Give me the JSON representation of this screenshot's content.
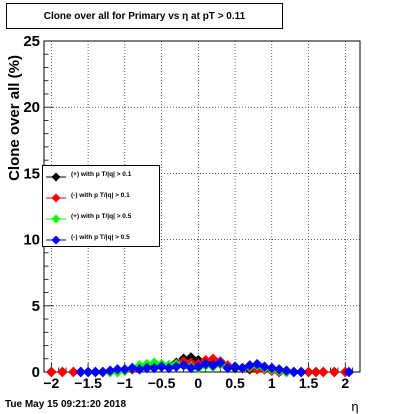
{
  "title": "Clone  over all for Primary vs   η at pT > 0.11",
  "footer": {
    "date": "Tue May 15 09:21:20 2018"
  },
  "chart_data": {
    "type": "scatter",
    "title": "Clone  over all for Primary vs   η at pT > 0.11",
    "xlabel": "η",
    "ylabel": "Clone  over all (%)",
    "xlim": [
      -2.1,
      2.2
    ],
    "ylim": [
      0,
      25
    ],
    "xticks": [
      -2,
      -1.5,
      -1,
      -0.5,
      0,
      0.5,
      1,
      1.5,
      2
    ],
    "xtick_labels": [
      "−2",
      "−1.5",
      "−1",
      "−0.5",
      "0",
      "0.5",
      "1",
      "1.5",
      "2"
    ],
    "yticks": [
      0,
      5,
      10,
      15,
      20,
      25
    ],
    "ytick_labels": [
      "0",
      "5",
      "10",
      "15",
      "20",
      "25"
    ],
    "grid": true,
    "legend_position": "middle-left",
    "series": [
      {
        "name": "(+) with p T/|q| > 0.1",
        "color": "#000000",
        "x": [
          -2.0,
          -1.85,
          -1.7,
          -1.6,
          -1.5,
          -1.4,
          -1.3,
          -1.2,
          -1.1,
          -1.0,
          -0.9,
          -0.8,
          -0.7,
          -0.6,
          -0.5,
          -0.4,
          -0.3,
          -0.2,
          -0.1,
          0.0,
          0.1,
          0.2,
          0.3,
          0.4,
          0.5,
          0.6,
          0.7,
          0.8,
          0.9,
          1.0,
          1.1,
          1.2,
          1.3,
          1.4,
          1.5,
          1.6,
          1.7,
          1.85,
          2.0
        ],
        "y": [
          0,
          0,
          0,
          0,
          0,
          0,
          0,
          0,
          0,
          0.1,
          0.2,
          0.3,
          0.4,
          0.5,
          0.4,
          0.5,
          0.7,
          1.0,
          1.1,
          0.9,
          0.7,
          0.8,
          0.6,
          0.4,
          0.3,
          0.3,
          0.2,
          0.3,
          0.2,
          0.1,
          0,
          0,
          0,
          0,
          0,
          0,
          0,
          0,
          0
        ]
      },
      {
        "name": "(-) with p T/|q| > 0.1",
        "color": "#ff0000",
        "x": [
          -2.0,
          -1.85,
          -1.7,
          -1.6,
          -1.5,
          -1.4,
          -1.3,
          -1.2,
          -1.1,
          -1.0,
          -0.9,
          -0.8,
          -0.7,
          -0.6,
          -0.5,
          -0.4,
          -0.3,
          -0.2,
          -0.1,
          0.0,
          0.1,
          0.2,
          0.3,
          0.4,
          0.5,
          0.6,
          0.7,
          0.8,
          0.9,
          1.0,
          1.1,
          1.2,
          1.3,
          1.4,
          1.5,
          1.6,
          1.7,
          1.85,
          2.0
        ],
        "y": [
          0,
          0,
          0,
          0,
          0,
          0,
          0,
          0,
          0,
          0.1,
          0.2,
          0.3,
          0.3,
          0.4,
          0.5,
          0.4,
          0.6,
          0.8,
          0.7,
          0.6,
          0.9,
          1.0,
          0.8,
          0.5,
          0.4,
          0.3,
          0.3,
          0.2,
          0.2,
          0.1,
          0,
          0,
          0,
          0,
          0,
          0,
          0,
          0,
          0
        ]
      },
      {
        "name": "(+) with p T/|q| > 0.5",
        "color": "#00ff00",
        "x": [
          -1.5,
          -1.4,
          -1.3,
          -1.2,
          -1.1,
          -1.0,
          -0.9,
          -0.8,
          -0.7,
          -0.6,
          -0.5,
          -0.4,
          -0.3,
          -0.2,
          -0.1,
          0.0,
          0.1,
          0.2,
          0.3,
          0.4,
          0.5,
          0.6,
          0.7,
          0.8,
          0.9,
          1.0,
          1.1,
          1.2,
          1.3
        ],
        "y": [
          0,
          0,
          0,
          0,
          0,
          0.1,
          0.3,
          0.5,
          0.6,
          0.7,
          0.6,
          0.5,
          0.6,
          0.5,
          0.4,
          0.3,
          0.5,
          0.4,
          0.6,
          0.3,
          0.4,
          0.3,
          0.4,
          0.5,
          0.3,
          0.2,
          0.1,
          0,
          0
        ]
      },
      {
        "name": "(-) with p T/|q| > 0.5",
        "color": "#0000ff",
        "x": [
          -1.6,
          -1.5,
          -1.4,
          -1.3,
          -1.2,
          -1.1,
          -1.0,
          -0.9,
          -0.8,
          -0.7,
          -0.6,
          -0.5,
          -0.4,
          -0.3,
          -0.2,
          -0.1,
          0.0,
          0.1,
          0.2,
          0.3,
          0.4,
          0.5,
          0.6,
          0.7,
          0.8,
          0.9,
          1.0,
          1.1,
          1.2,
          1.3,
          1.4,
          2.05
        ],
        "y": [
          0,
          0,
          0,
          0,
          0.1,
          0.2,
          0.2,
          0.3,
          0.2,
          0.3,
          0.3,
          0.4,
          0.3,
          0.4,
          0.5,
          0.3,
          0.4,
          0.6,
          0.5,
          0.7,
          0.3,
          0.4,
          0.3,
          0.5,
          0.6,
          0.4,
          0.3,
          0.2,
          0.1,
          0,
          0,
          0
        ]
      }
    ]
  }
}
